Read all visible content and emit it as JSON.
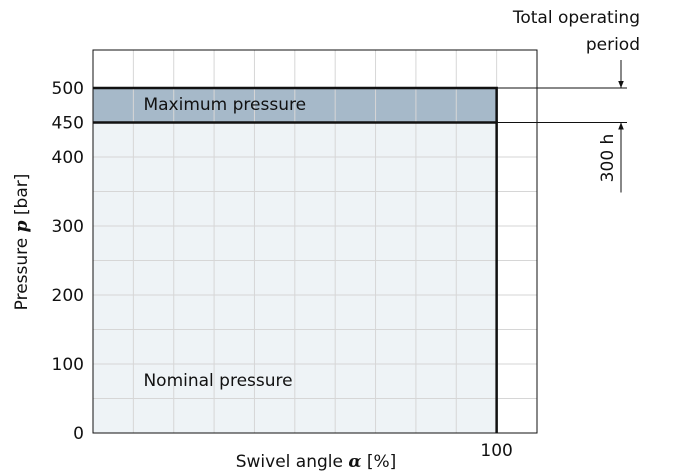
{
  "chart_data": {
    "type": "region",
    "x_label": [
      "Swivel angle ",
      "α",
      " [%]"
    ],
    "y_label": [
      "Pressure ",
      "p",
      " [bar]"
    ],
    "xlim": [
      0,
      110
    ],
    "ylim": [
      0,
      555
    ],
    "xticks": [
      100
    ],
    "yticks": [
      0,
      100,
      200,
      300,
      400,
      450,
      500
    ],
    "x_minor_ticks": [
      10,
      20,
      30,
      40,
      50,
      60,
      70,
      80,
      90,
      100
    ],
    "y_minor_ticks": [
      50,
      100,
      150,
      200,
      250,
      300,
      350,
      400,
      450,
      500
    ],
    "grid": true,
    "regions": [
      {
        "name": "Nominal pressure",
        "x": [
          0,
          100
        ],
        "y": [
          0,
          450
        ],
        "color": "#eef3f6"
      },
      {
        "name": "Maximum pressure",
        "x": [
          0,
          100
        ],
        "y": [
          450,
          500
        ],
        "color": "#a6b9c9"
      }
    ],
    "annotation": {
      "lines": [
        "Total operating",
        "period"
      ],
      "duration": "300 h"
    }
  }
}
